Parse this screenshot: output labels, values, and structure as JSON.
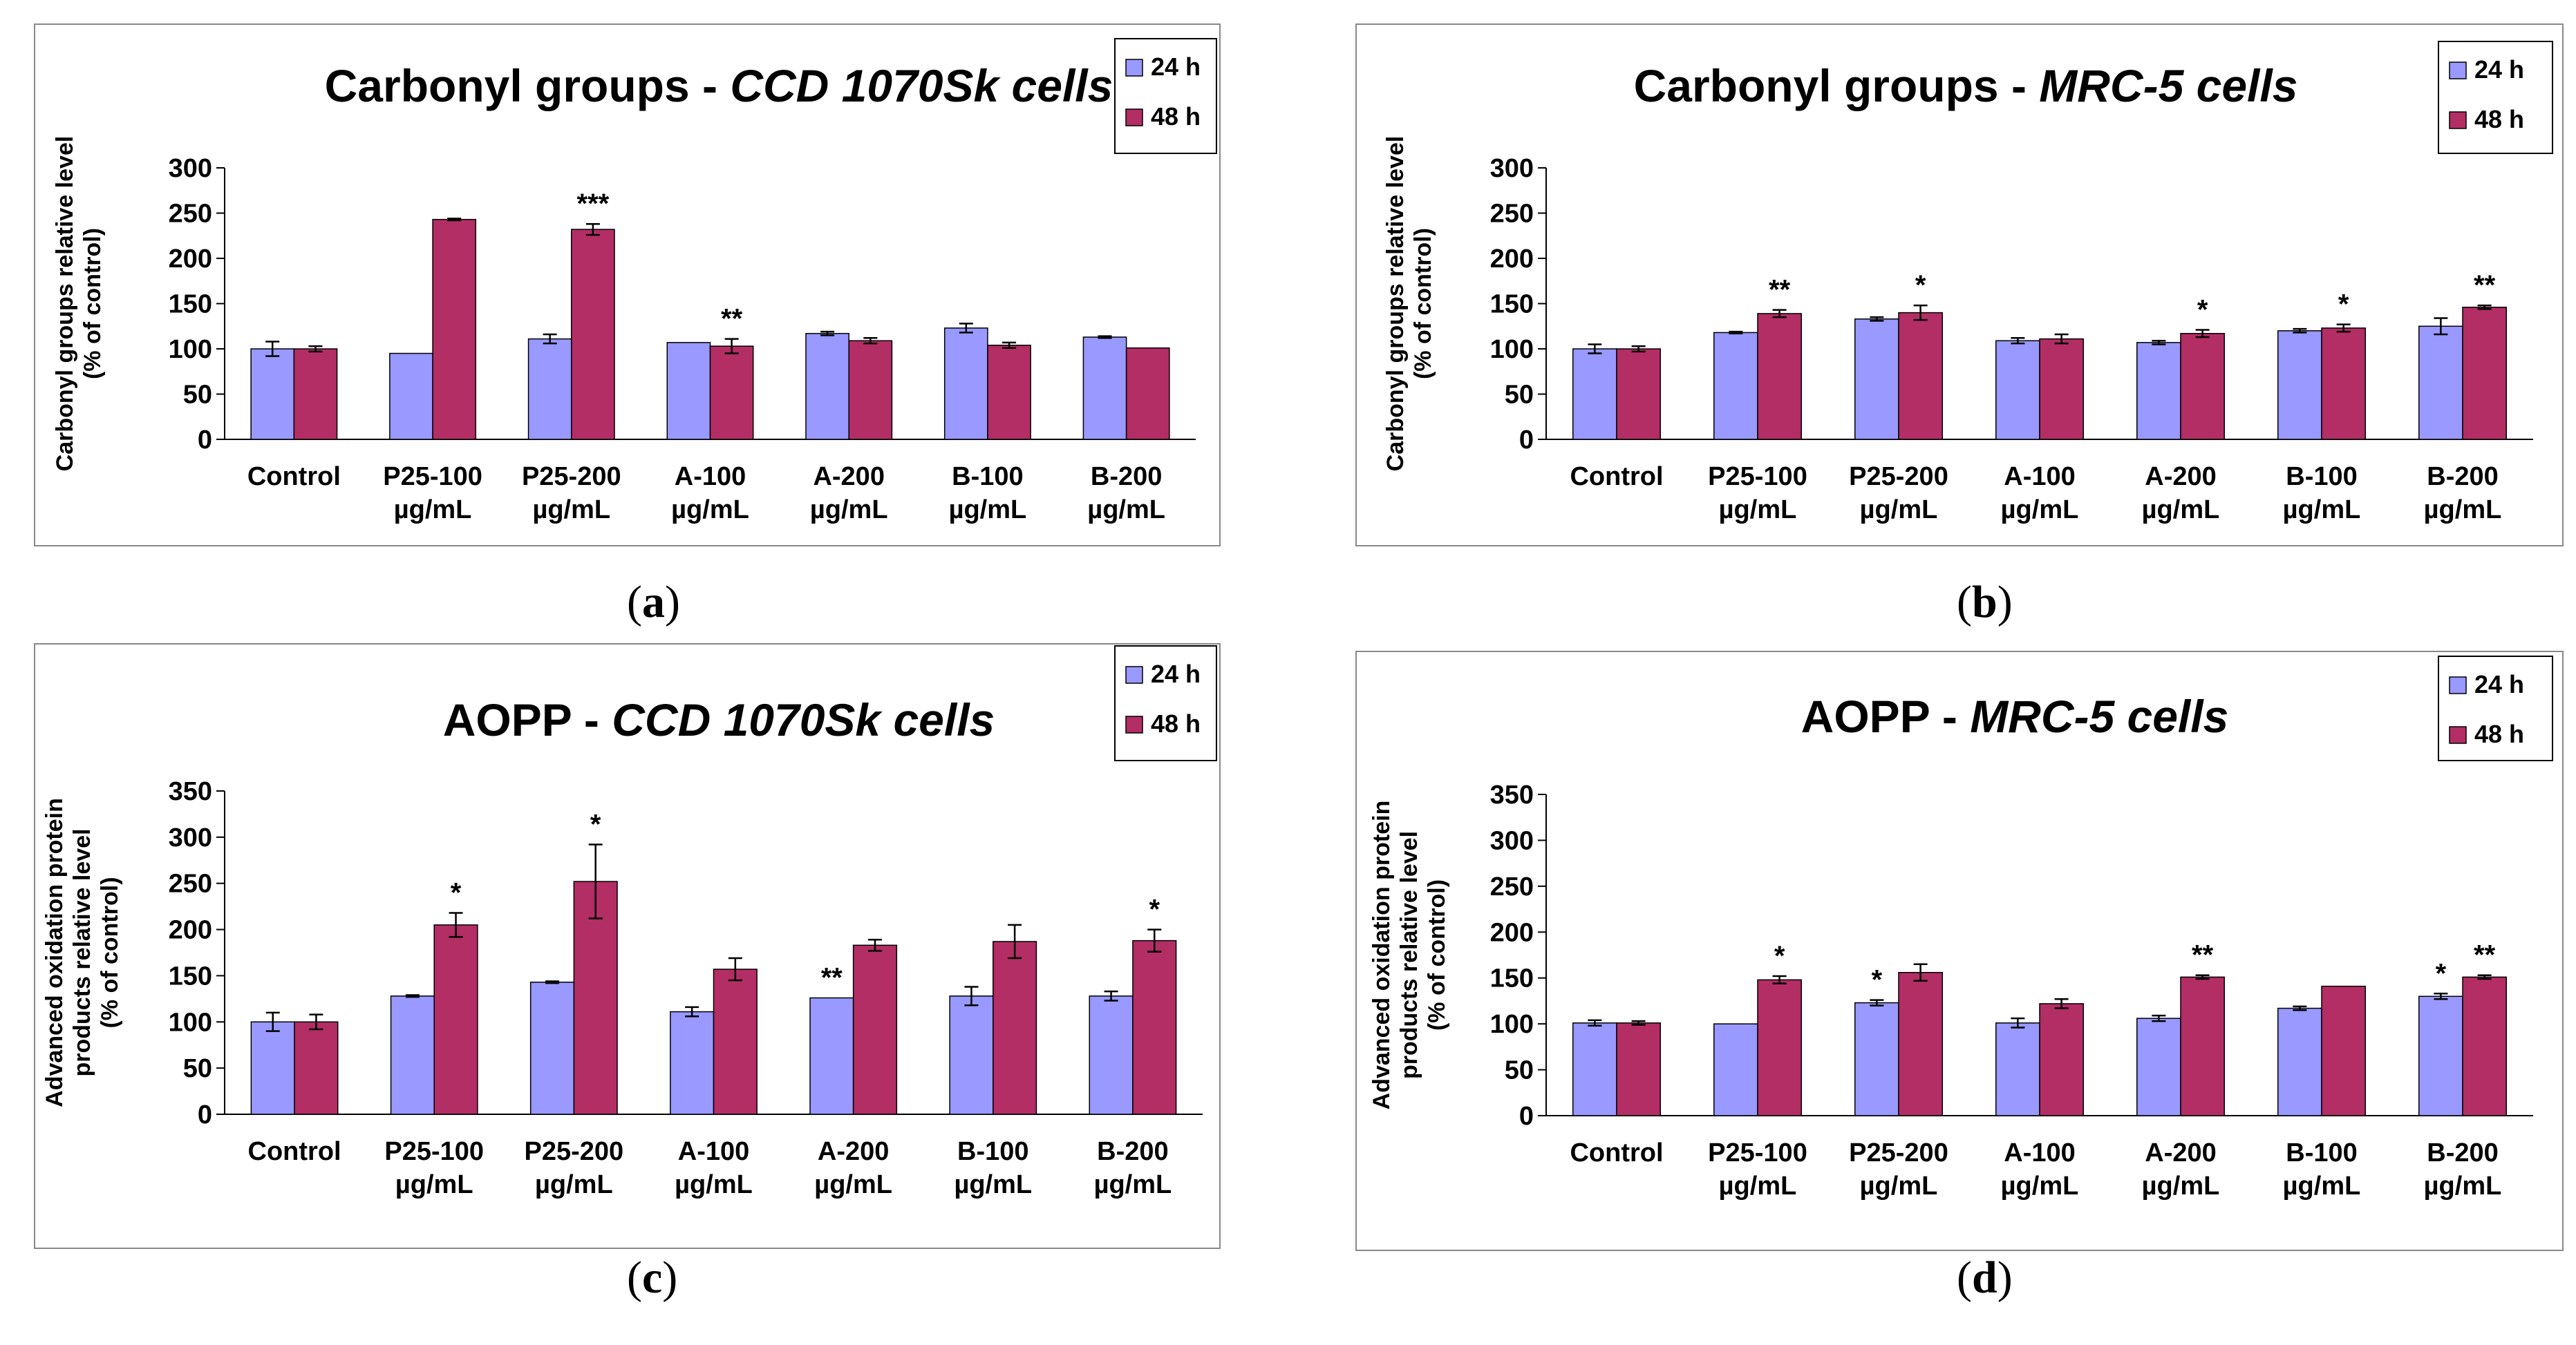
{
  "chart_data": [
    {
      "panel": "(a)",
      "panel_letter": "a",
      "type": "bar",
      "title_plain": "Carbonyl groups - ",
      "title_italic": "CCD 1070Sk cells",
      "ylabel_lines": [
        "Carbonyl groups relative level",
        "(% of control)"
      ],
      "ylim": [
        0,
        300
      ],
      "yticks": [
        "0",
        "50",
        "100",
        "150",
        "200",
        "250",
        "300"
      ],
      "categories": [
        [
          "Control"
        ],
        [
          "P25-100",
          "µg/mL"
        ],
        [
          "P25-200",
          "µg/mL"
        ],
        [
          "A-100",
          "µg/mL"
        ],
        [
          "A-200",
          "µg/mL"
        ],
        [
          "B-100",
          "µg/mL"
        ],
        [
          "B-200",
          "µg/mL"
        ]
      ],
      "series": [
        {
          "name": "24 h",
          "values": [
            100,
            95,
            111,
            107,
            117,
            123,
            113
          ],
          "errors": [
            8,
            0,
            5,
            0,
            2,
            5,
            1
          ],
          "color": "#9999ff"
        },
        {
          "name": "48 h",
          "values": [
            100,
            243,
            232,
            103,
            109,
            104,
            101
          ],
          "errors": [
            3,
            1,
            6,
            8,
            3,
            3,
            0
          ],
          "color": "#b22e64"
        }
      ],
      "annotations": [
        {
          "category": 2,
          "series": 1,
          "text": "***"
        },
        {
          "category": 3,
          "series": 1,
          "text": "**"
        }
      ]
    },
    {
      "panel": "(b)",
      "panel_letter": "b",
      "type": "bar",
      "title_plain": "Carbonyl groups - ",
      "title_italic": "MRC-5 cells",
      "ylabel_lines": [
        "Carbonyl groups relative level",
        "(% of control)"
      ],
      "ylim": [
        0,
        300
      ],
      "yticks": [
        "0",
        "50",
        "100",
        "150",
        "200",
        "250",
        "300"
      ],
      "categories": [
        [
          "Control"
        ],
        [
          "P25-100",
          "µg/mL"
        ],
        [
          "P25-200",
          "µg/mL"
        ],
        [
          "A-100",
          "µg/mL"
        ],
        [
          "A-200",
          "µg/mL"
        ],
        [
          "B-100",
          "µg/mL"
        ],
        [
          "B-200",
          "µg/mL"
        ]
      ],
      "series": [
        {
          "name": "24 h",
          "values": [
            100,
            118,
            133,
            109,
            107,
            120,
            125
          ],
          "errors": [
            5,
            1,
            2,
            3,
            2,
            2,
            9
          ],
          "color": "#9999ff"
        },
        {
          "name": "48 h",
          "values": [
            100,
            139,
            140,
            111,
            117,
            123,
            146
          ],
          "errors": [
            3,
            4,
            8,
            5,
            4,
            4,
            2
          ],
          "color": "#b22e64"
        }
      ],
      "annotations": [
        {
          "category": 1,
          "series": 1,
          "text": "**"
        },
        {
          "category": 2,
          "series": 1,
          "text": "*"
        },
        {
          "category": 4,
          "series": 1,
          "text": "*"
        },
        {
          "category": 5,
          "series": 1,
          "text": "*"
        },
        {
          "category": 6,
          "series": 1,
          "text": "**"
        }
      ]
    },
    {
      "panel": "(c)",
      "panel_letter": "c",
      "type": "bar",
      "title_plain": "AOPP - ",
      "title_italic": "CCD 1070Sk cells",
      "ylabel_lines": [
        "Advanced  oxidation protein",
        "products relative level",
        "(% of control)"
      ],
      "ylim": [
        0,
        350
      ],
      "yticks": [
        "0",
        "50",
        "100",
        "150",
        "200",
        "250",
        "300",
        "350"
      ],
      "categories": [
        [
          "Control"
        ],
        [
          "P25-100",
          "µg/mL"
        ],
        [
          "P25-200",
          "µg/mL"
        ],
        [
          "A-100",
          "µg/mL"
        ],
        [
          "A-200",
          "µg/mL"
        ],
        [
          "B-100",
          "µg/mL"
        ],
        [
          "B-200",
          "µg/mL"
        ]
      ],
      "series": [
        {
          "name": "24 h",
          "values": [
            100,
            128,
            143,
            111,
            126,
            128,
            128
          ],
          "errors": [
            10,
            1,
            1,
            5,
            0,
            10,
            5
          ],
          "color": "#9999ff"
        },
        {
          "name": "48 h",
          "values": [
            100,
            205,
            252,
            157,
            183,
            187,
            188
          ],
          "errors": [
            8,
            13,
            40,
            12,
            6,
            18,
            12
          ],
          "color": "#b22e64"
        }
      ],
      "annotations": [
        {
          "category": 1,
          "series": 1,
          "text": "*"
        },
        {
          "category": 2,
          "series": 1,
          "text": "*"
        },
        {
          "category": 4,
          "series": 0,
          "text": "**"
        },
        {
          "category": 6,
          "series": 1,
          "text": "*"
        }
      ]
    },
    {
      "panel": "(d)",
      "panel_letter": "d",
      "type": "bar",
      "title_plain": "AOPP - ",
      "title_italic": "MRC-5 cells",
      "ylabel_lines": [
        "Advanced oxidation protein",
        "products relative level",
        "(% of control)"
      ],
      "ylim": [
        0,
        350
      ],
      "yticks": [
        "0",
        "50",
        "100",
        "150",
        "200",
        "250",
        "300",
        "350"
      ],
      "categories": [
        [
          "Control"
        ],
        [
          "P25-100",
          "µg/mL"
        ],
        [
          "P25-200",
          "µg/mL"
        ],
        [
          "A-100",
          "µg/mL"
        ],
        [
          "A-200",
          "µg/mL"
        ],
        [
          "B-100",
          "µg/mL"
        ],
        [
          "B-200",
          "µg/mL"
        ]
      ],
      "series": [
        {
          "name": "24 h",
          "values": [
            101,
            100,
            123,
            101,
            106,
            117,
            130
          ],
          "errors": [
            3,
            0,
            3,
            5,
            3,
            2,
            3
          ],
          "color": "#9999ff"
        },
        {
          "name": "48 h",
          "values": [
            101,
            148,
            156,
            122,
            151,
            141,
            151
          ],
          "errors": [
            2,
            4,
            9,
            5,
            2,
            0,
            2
          ],
          "color": "#b22e64"
        }
      ],
      "annotations": [
        {
          "category": 1,
          "series": 1,
          "text": "*"
        },
        {
          "category": 2,
          "series": 0,
          "text": "*"
        },
        {
          "category": 4,
          "series": 1,
          "text": "**"
        },
        {
          "category": 6,
          "series": 0,
          "text": "*"
        },
        {
          "category": 6,
          "series": 1,
          "text": "**"
        }
      ]
    }
  ]
}
